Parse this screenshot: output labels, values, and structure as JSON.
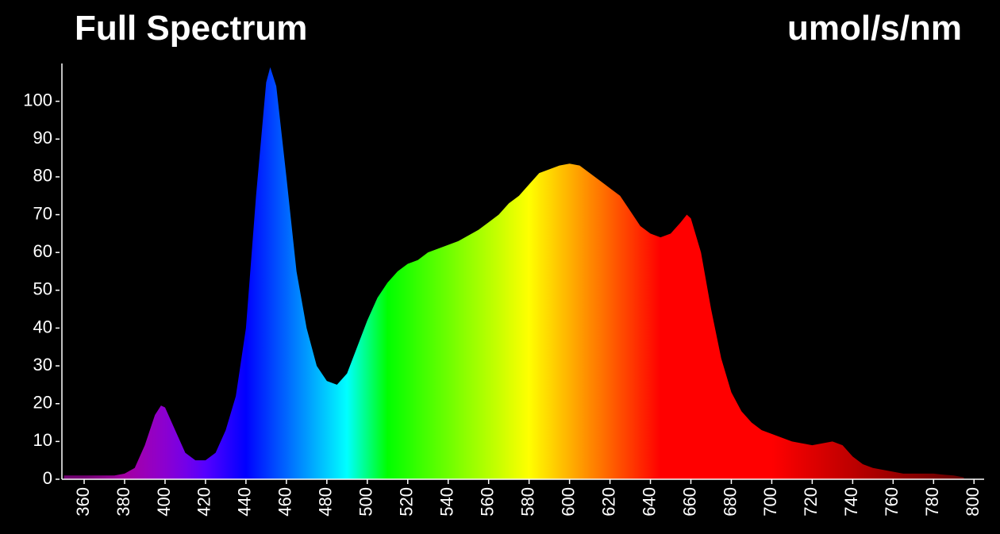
{
  "chart_data": {
    "type": "area",
    "title": "Full Spectrum",
    "y_label": "umol/s/nm",
    "x": [
      350,
      355,
      360,
      365,
      370,
      375,
      380,
      385,
      390,
      395,
      398,
      400,
      405,
      410,
      415,
      420,
      425,
      430,
      435,
      440,
      445,
      450,
      452,
      455,
      460,
      465,
      470,
      475,
      480,
      485,
      490,
      495,
      500,
      505,
      510,
      515,
      520,
      525,
      530,
      535,
      540,
      545,
      550,
      555,
      560,
      565,
      570,
      575,
      580,
      585,
      590,
      595,
      600,
      605,
      610,
      615,
      620,
      625,
      630,
      635,
      640,
      645,
      650,
      655,
      658,
      660,
      665,
      670,
      675,
      680,
      685,
      690,
      695,
      700,
      705,
      710,
      715,
      720,
      725,
      730,
      735,
      740,
      745,
      750,
      755,
      760,
      765,
      770,
      775,
      780,
      785,
      790,
      795
    ],
    "values": [
      1,
      1,
      1,
      1,
      1,
      1,
      1.5,
      3,
      9,
      17,
      19.5,
      19,
      13,
      7,
      5,
      5,
      7,
      13,
      22,
      40,
      75,
      105,
      109,
      104,
      80,
      55,
      40,
      30,
      26,
      25,
      28,
      35,
      42,
      48,
      52,
      55,
      57,
      58,
      60,
      61,
      62,
      63,
      64.5,
      66,
      68,
      70,
      73,
      75,
      78,
      81,
      82,
      83,
      83.5,
      83,
      81,
      79,
      77,
      75,
      71,
      67,
      65,
      64,
      65,
      68,
      70,
      69,
      60,
      45,
      32,
      23,
      18,
      15,
      13,
      12,
      11,
      10,
      9.5,
      9,
      9.5,
      10,
      9,
      6,
      4,
      3,
      2.5,
      2,
      1.5,
      1.5,
      1.5,
      1.5,
      1.2,
      1,
      0.5
    ],
    "xlim": [
      349,
      805
    ],
    "ylim": [
      0,
      110
    ],
    "xticks": [
      360,
      380,
      400,
      420,
      440,
      460,
      480,
      500,
      520,
      540,
      560,
      580,
      600,
      620,
      640,
      660,
      680,
      700,
      720,
      740,
      760,
      780,
      800
    ],
    "yticks": [
      0,
      10,
      20,
      30,
      40,
      50,
      60,
      70,
      80,
      90,
      100
    ]
  }
}
